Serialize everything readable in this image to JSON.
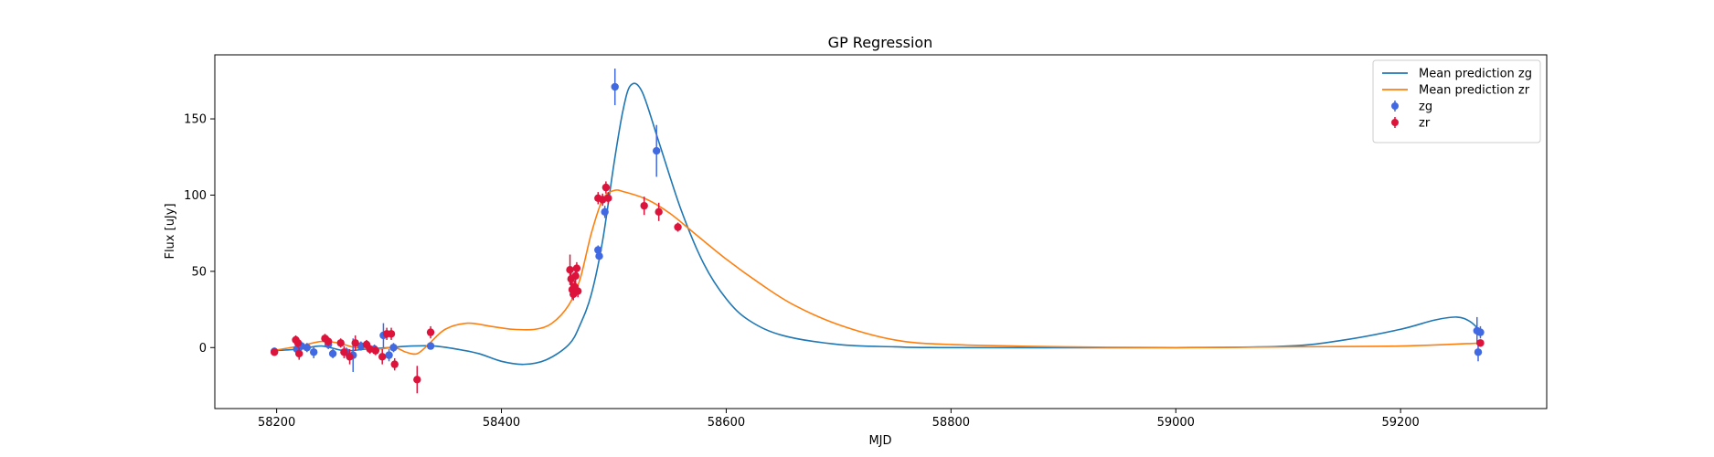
{
  "chart_data": {
    "type": "scatter",
    "title": "GP Regression",
    "xlabel": "MJD",
    "ylabel": "Flux [uJy]",
    "xlim": [
      58145,
      59330
    ],
    "ylim": [
      -40,
      192
    ],
    "xticks": [
      58200,
      58400,
      58600,
      58800,
      59000,
      59200
    ],
    "yticks": [
      0,
      50,
      100,
      150
    ],
    "legend": {
      "position": "top-right",
      "entries": [
        {
          "label": "Mean prediction zg",
          "kind": "line",
          "color": "#1f77b4"
        },
        {
          "label": "Mean prediction zr",
          "kind": "line",
          "color": "#ff7f0e"
        },
        {
          "label": "zg",
          "kind": "errorbar",
          "color": "#4169e1"
        },
        {
          "label": "zr",
          "kind": "errorbar",
          "color": "#dc143c"
        }
      ]
    },
    "lines": [
      {
        "name": "Mean prediction zg",
        "color": "#1f77b4",
        "points": [
          [
            58197,
            -2
          ],
          [
            58220,
            -1
          ],
          [
            58240,
            1
          ],
          [
            58260,
            -2
          ],
          [
            58280,
            -1
          ],
          [
            58300,
            0
          ],
          [
            58320,
            1
          ],
          [
            58340,
            1
          ],
          [
            58360,
            -1
          ],
          [
            58380,
            -4
          ],
          [
            58400,
            -9
          ],
          [
            58420,
            -11
          ],
          [
            58440,
            -8
          ],
          [
            58460,
            2
          ],
          [
            58470,
            15
          ],
          [
            58480,
            35
          ],
          [
            58490,
            70
          ],
          [
            58500,
            120
          ],
          [
            58508,
            155
          ],
          [
            58515,
            172
          ],
          [
            58525,
            168
          ],
          [
            58540,
            135
          ],
          [
            58560,
            90
          ],
          [
            58580,
            55
          ],
          [
            58600,
            32
          ],
          [
            58620,
            18
          ],
          [
            58650,
            8
          ],
          [
            58700,
            2
          ],
          [
            58750,
            0.5
          ],
          [
            58800,
            0
          ],
          [
            59000,
            0
          ],
          [
            59100,
            1
          ],
          [
            59150,
            5
          ],
          [
            59200,
            12
          ],
          [
            59230,
            18
          ],
          [
            59250,
            20
          ],
          [
            59262,
            17
          ],
          [
            59272,
            10
          ]
        ]
      },
      {
        "name": "Mean prediction zr",
        "color": "#ff7f0e",
        "points": [
          [
            58197,
            -2
          ],
          [
            58220,
            1
          ],
          [
            58240,
            4
          ],
          [
            58255,
            3
          ],
          [
            58270,
            0
          ],
          [
            58290,
            -1
          ],
          [
            58305,
            0
          ],
          [
            58315,
            -3
          ],
          [
            58325,
            -4
          ],
          [
            58335,
            2
          ],
          [
            58350,
            12
          ],
          [
            58370,
            16
          ],
          [
            58390,
            14
          ],
          [
            58410,
            12
          ],
          [
            58430,
            12
          ],
          [
            58445,
            16
          ],
          [
            58460,
            28
          ],
          [
            58470,
            45
          ],
          [
            58480,
            75
          ],
          [
            58490,
            97
          ],
          [
            58500,
            103
          ],
          [
            58510,
            102
          ],
          [
            58530,
            97
          ],
          [
            58550,
            88
          ],
          [
            58570,
            76
          ],
          [
            58600,
            58
          ],
          [
            58630,
            42
          ],
          [
            58660,
            28
          ],
          [
            58700,
            15
          ],
          [
            58750,
            5
          ],
          [
            58800,
            2
          ],
          [
            58900,
            0.5
          ],
          [
            59000,
            0
          ],
          [
            59100,
            0.5
          ],
          [
            59200,
            1
          ],
          [
            59272,
            3
          ]
        ]
      }
    ],
    "series": [
      {
        "name": "zg",
        "color": "#4169e1",
        "points": [
          {
            "x": 58198,
            "y": -2.5,
            "err": 2.5
          },
          {
            "x": 58218,
            "y": -1,
            "err": 3
          },
          {
            "x": 58222,
            "y": 1,
            "err": 3
          },
          {
            "x": 58227,
            "y": 0,
            "err": 3
          },
          {
            "x": 58233,
            "y": -3,
            "err": 4
          },
          {
            "x": 58246,
            "y": 2,
            "err": 3
          },
          {
            "x": 58250,
            "y": -4,
            "err": 3
          },
          {
            "x": 58262,
            "y": -3,
            "err": 3
          },
          {
            "x": 58268,
            "y": -5,
            "err": 11
          },
          {
            "x": 58275,
            "y": 1,
            "err": 3
          },
          {
            "x": 58287,
            "y": -1,
            "err": 3
          },
          {
            "x": 58295,
            "y": 8,
            "err": 8
          },
          {
            "x": 58300,
            "y": -5,
            "err": 4
          },
          {
            "x": 58304,
            "y": 0,
            "err": 3
          },
          {
            "x": 58337,
            "y": 1,
            "err": 2
          },
          {
            "x": 58486,
            "y": 64,
            "err": 3
          },
          {
            "x": 58487,
            "y": 60,
            "err": 3
          },
          {
            "x": 58492,
            "y": 89,
            "err": 4
          },
          {
            "x": 58501,
            "y": 171,
            "err": 12
          },
          {
            "x": 58538,
            "y": 129,
            "err": 17
          },
          {
            "x": 59268,
            "y": 11,
            "err": 9
          },
          {
            "x": 59269,
            "y": -3,
            "err": 6
          },
          {
            "x": 59271,
            "y": 10,
            "err": 4
          }
        ]
      },
      {
        "name": "zr",
        "color": "#dc143c",
        "points": [
          {
            "x": 58198,
            "y": -3,
            "err": 2
          },
          {
            "x": 58217,
            "y": 5,
            "err": 3
          },
          {
            "x": 58219,
            "y": 3,
            "err": 3
          },
          {
            "x": 58220,
            "y": -4,
            "err": 4
          },
          {
            "x": 58243,
            "y": 6,
            "err": 3
          },
          {
            "x": 58246,
            "y": 4,
            "err": 3
          },
          {
            "x": 58257,
            "y": 3,
            "err": 3
          },
          {
            "x": 58260,
            "y": -3,
            "err": 4
          },
          {
            "x": 58265,
            "y": -6,
            "err": 5
          },
          {
            "x": 58270,
            "y": 3,
            "err": 5
          },
          {
            "x": 58280,
            "y": 2,
            "err": 3
          },
          {
            "x": 58283,
            "y": -1,
            "err": 3
          },
          {
            "x": 58288,
            "y": -2,
            "err": 3
          },
          {
            "x": 58294,
            "y": -6,
            "err": 5
          },
          {
            "x": 58298,
            "y": 9,
            "err": 4
          },
          {
            "x": 58302,
            "y": 9,
            "err": 4
          },
          {
            "x": 58305,
            "y": -11,
            "err": 4
          },
          {
            "x": 58325,
            "y": -21,
            "err": 9
          },
          {
            "x": 58337,
            "y": 10,
            "err": 4
          },
          {
            "x": 58461,
            "y": 51,
            "err": 10
          },
          {
            "x": 58462,
            "y": 45,
            "err": 8
          },
          {
            "x": 58463,
            "y": 38,
            "err": 6
          },
          {
            "x": 58464,
            "y": 35,
            "err": 4
          },
          {
            "x": 58465,
            "y": 40,
            "err": 4
          },
          {
            "x": 58466,
            "y": 47,
            "err": 5
          },
          {
            "x": 58467,
            "y": 52,
            "err": 4
          },
          {
            "x": 58468,
            "y": 37,
            "err": 4
          },
          {
            "x": 58486,
            "y": 98,
            "err": 4
          },
          {
            "x": 58490,
            "y": 97,
            "err": 4
          },
          {
            "x": 58493,
            "y": 105,
            "err": 4
          },
          {
            "x": 58495,
            "y": 98,
            "err": 4
          },
          {
            "x": 58527,
            "y": 93,
            "err": 6
          },
          {
            "x": 58540,
            "y": 89,
            "err": 6
          },
          {
            "x": 58557,
            "y": 79,
            "err": 3
          },
          {
            "x": 59271,
            "y": 3,
            "err": 2
          }
        ]
      }
    ]
  }
}
